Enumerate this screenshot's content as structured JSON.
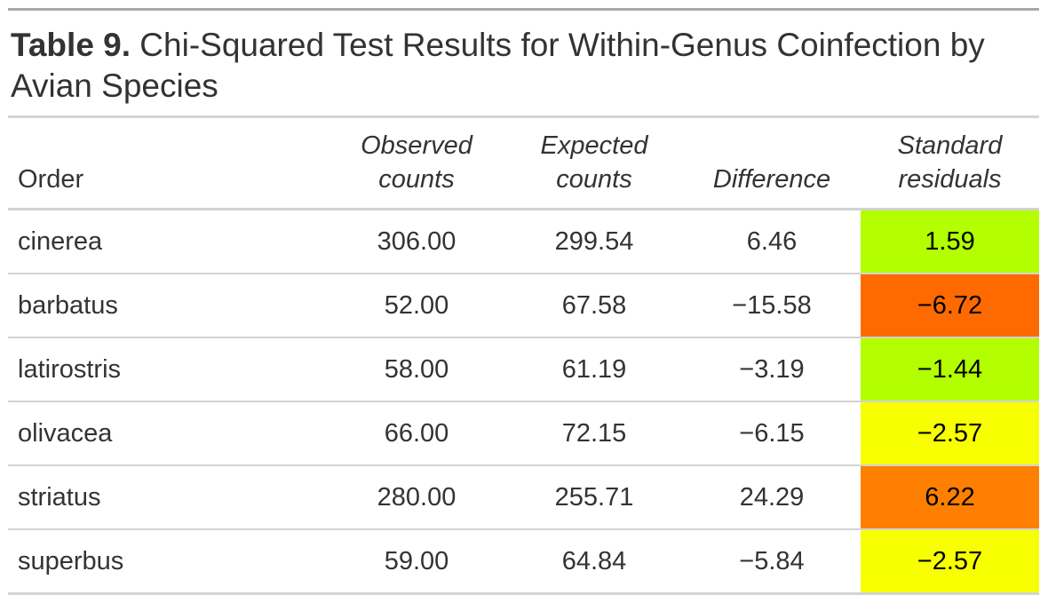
{
  "title": {
    "label": "Table 9.",
    "text": " Chi-Squared Test Results for Within-Genus Coinfection by Avian Species"
  },
  "columns": [
    "Order",
    "Observed counts",
    "Expected counts",
    "Difference",
    "Standard residuals"
  ],
  "rows": [
    {
      "order": "cinerea",
      "observed": "306.00",
      "expected": "299.54",
      "difference": "6.46",
      "residual": "1.59",
      "color": "#b3ff00"
    },
    {
      "order": "barbatus",
      "observed": "52.00",
      "expected": "67.58",
      "difference": "−15.58",
      "residual": "−6.72",
      "color": "#ff6a00"
    },
    {
      "order": "latirostris",
      "observed": "58.00",
      "expected": "61.19",
      "difference": "−3.19",
      "residual": "−1.44",
      "color": "#b3ff00"
    },
    {
      "order": "olivacea",
      "observed": "66.00",
      "expected": "72.15",
      "difference": "−6.15",
      "residual": "−2.57",
      "color": "#f7ff00"
    },
    {
      "order": "striatus",
      "observed": "280.00",
      "expected": "255.71",
      "difference": "24.29",
      "residual": "6.22",
      "color": "#ff7f00"
    },
    {
      "order": "superbus",
      "observed": "59.00",
      "expected": "64.84",
      "difference": "−5.84",
      "residual": "−2.57",
      "color": "#f7ff00"
    }
  ]
}
